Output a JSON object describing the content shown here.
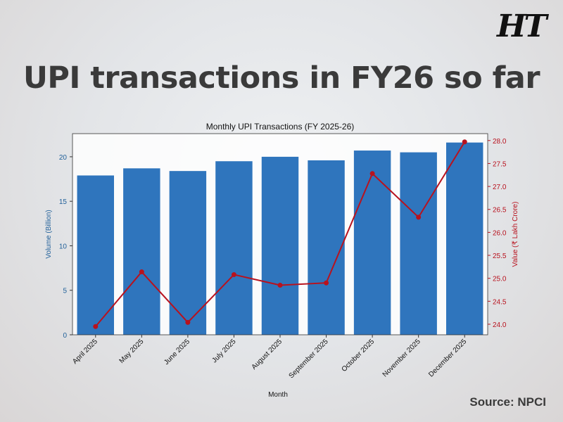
{
  "logo": "HT",
  "headline": "UPI transactions in FY26 so far",
  "source": "Source: NPCI",
  "colors": {
    "bars": "#2f75bd",
    "line": "#b8121e",
    "left_axis": "#1f5f99",
    "right_axis": "#b8121e"
  },
  "chart_data": {
    "type": "bar+line",
    "title": "Monthly UPI Transactions (FY 2025-26)",
    "xlabel": "Month",
    "ylabel": "Volume (Billion)",
    "y2label": "Value (₹ Lakh Crore)",
    "categories": [
      "April 2025",
      "May 2025",
      "June 2025",
      "July 2025",
      "August 2025",
      "September 2025",
      "October 2025",
      "November 2025",
      "December 2025"
    ],
    "ylim": [
      0,
      22.6
    ],
    "y2lim": [
      23.77,
      28.15
    ],
    "yticks": [
      0,
      5,
      10,
      15,
      20
    ],
    "y2ticks": [
      "24.0",
      "24.5",
      "25.0",
      "25.5",
      "26.0",
      "26.5",
      "27.0",
      "27.5",
      "28.0"
    ],
    "grid": false,
    "series": [
      {
        "name": "Volume (Billion)",
        "type": "bar",
        "axis": "left",
        "values": [
          17.9,
          18.7,
          18.4,
          19.5,
          20.0,
          19.6,
          20.7,
          20.5,
          21.6
        ]
      },
      {
        "name": "Value (₹ Lakh Crore)",
        "type": "line",
        "axis": "right",
        "values": [
          23.95,
          25.14,
          24.04,
          25.08,
          24.85,
          24.9,
          27.28,
          26.33,
          27.97
        ]
      }
    ]
  }
}
